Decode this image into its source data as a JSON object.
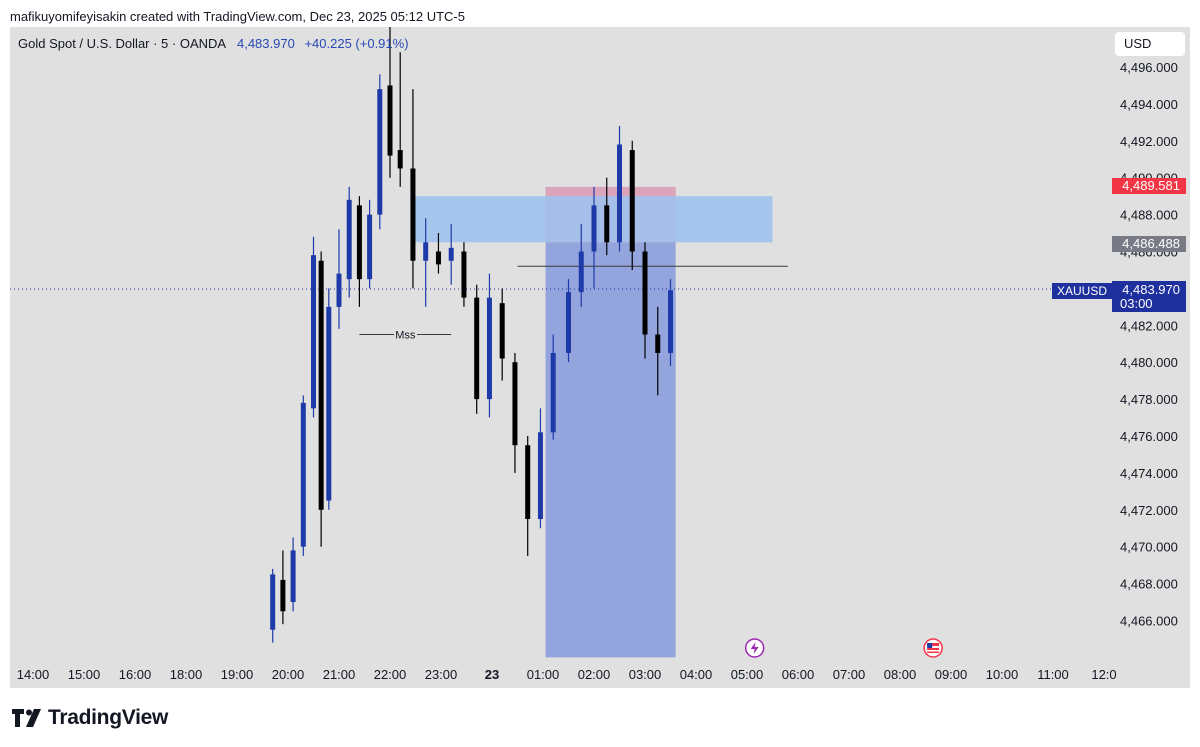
{
  "header": {
    "attribution": "mafikuyomifeyisakin created with TradingView.com, Dec 23, 2025 05:12 UTC-5"
  },
  "symbol": {
    "name": "Gold Spot / U.S. Dollar · 5 · OANDA",
    "price": "4,483.970",
    "change": "+40.225 (+0.91%)",
    "ticker": "XAUUSD",
    "countdown": "03:00"
  },
  "currency_button": {
    "label": "USD"
  },
  "price_tags": {
    "red": "4,489.581",
    "gray": "4,486.488",
    "current": "4,483.970"
  },
  "annotations": {
    "mss": "Mss"
  },
  "footer": {
    "brand": "TradingView"
  },
  "colors": {
    "background": "#e0e0e0",
    "bull": "#1e3aa8",
    "bear": "#000000",
    "demand_zone": "#8fa0dc",
    "supply_zone": "#e6a6b4",
    "fvg": "#a0c2ee",
    "last_price_red": "#f23645",
    "last_price_blue": "#1e2f9e"
  },
  "chart_data": {
    "type": "candlestick",
    "symbol": "XAUUSD",
    "interval": "5",
    "ylim": [
      4464.0,
      4498.5
    ],
    "y_ticks": [
      "4,466.000",
      "4,468.000",
      "4,470.000",
      "4,472.000",
      "4,474.000",
      "4,476.000",
      "4,478.000",
      "4,480.000",
      "4,482.000",
      "4,484.000",
      "4,486.000",
      "4,488.000",
      "4,490.000",
      "4,492.000",
      "4,494.000",
      "4,496.000"
    ],
    "x_ticks": [
      "14:00",
      "15:00",
      "16:00",
      "18:00",
      "19:00",
      "20:00",
      "21:00",
      "22:00",
      "23:00",
      "23",
      "01:00",
      "02:00",
      "03:00",
      "04:00",
      "05:00",
      "06:00",
      "07:00",
      "08:00",
      "09:00",
      "10:00",
      "11:00",
      "12:0"
    ],
    "x_tick_values": [
      -8,
      -7,
      -6,
      -5,
      -4,
      -3,
      -2,
      -1,
      0,
      1,
      2,
      3,
      4,
      5,
      6,
      7,
      8,
      9,
      10,
      11,
      12,
      13
    ],
    "time_unit": "hours relative to 23:00 on Dec 22",
    "candles": [
      {
        "t": -3.3,
        "o": 4465.5,
        "h": 4468.8,
        "l": 4464.8,
        "c": 4468.5
      },
      {
        "t": -3.1,
        "o": 4468.2,
        "h": 4469.8,
        "l": 4465.8,
        "c": 4466.5
      },
      {
        "t": -2.9,
        "o": 4467.0,
        "h": 4470.5,
        "l": 4466.5,
        "c": 4469.8
      },
      {
        "t": -2.7,
        "o": 4470.0,
        "h": 4478.2,
        "l": 4469.5,
        "c": 4477.8
      },
      {
        "t": -2.5,
        "o": 4477.5,
        "h": 4486.8,
        "l": 4477.0,
        "c": 4485.8
      },
      {
        "t": -2.35,
        "o": 4485.5,
        "h": 4486.0,
        "l": 4470.0,
        "c": 4472.0
      },
      {
        "t": -2.2,
        "o": 4472.5,
        "h": 4484.0,
        "l": 4472.0,
        "c": 4483.0
      },
      {
        "t": -2.0,
        "o": 4483.0,
        "h": 4487.2,
        "l": 4481.8,
        "c": 4484.8
      },
      {
        "t": -1.8,
        "o": 4484.5,
        "h": 4489.5,
        "l": 4483.5,
        "c": 4488.8
      },
      {
        "t": -1.6,
        "o": 4488.5,
        "h": 4489.0,
        "l": 4483.0,
        "c": 4484.5
      },
      {
        "t": -1.4,
        "o": 4484.5,
        "h": 4488.8,
        "l": 4484.0,
        "c": 4488.0
      },
      {
        "t": -1.2,
        "o": 4488.0,
        "h": 4495.6,
        "l": 4487.2,
        "c": 4494.8
      },
      {
        "t": -1.0,
        "o": 4495.0,
        "h": 4498.2,
        "l": 4490.0,
        "c": 4491.2
      },
      {
        "t": -0.8,
        "o": 4491.5,
        "h": 4496.8,
        "l": 4489.5,
        "c": 4490.5
      },
      {
        "t": -0.55,
        "o": 4490.5,
        "h": 4494.8,
        "l": 4484.0,
        "c": 4485.5
      },
      {
        "t": -0.3,
        "o": 4485.5,
        "h": 4487.8,
        "l": 4483.0,
        "c": 4486.5
      },
      {
        "t": -0.05,
        "o": 4486.0,
        "h": 4487.0,
        "l": 4484.8,
        "c": 4485.3
      },
      {
        "t": 0.2,
        "o": 4485.5,
        "h": 4487.5,
        "l": 4484.2,
        "c": 4486.2
      },
      {
        "t": 0.45,
        "o": 4486.0,
        "h": 4486.5,
        "l": 4483.0,
        "c": 4483.5
      },
      {
        "t": 0.7,
        "o": 4483.5,
        "h": 4484.2,
        "l": 4477.2,
        "c": 4478.0
      },
      {
        "t": 0.95,
        "o": 4478.0,
        "h": 4484.8,
        "l": 4477.0,
        "c": 4483.5
      },
      {
        "t": 1.2,
        "o": 4483.2,
        "h": 4484.0,
        "l": 4479.0,
        "c": 4480.2
      },
      {
        "t": 1.45,
        "o": 4480.0,
        "h": 4480.5,
        "l": 4474.0,
        "c": 4475.5
      },
      {
        "t": 1.7,
        "o": 4475.5,
        "h": 4476.0,
        "l": 4469.5,
        "c": 4471.5
      },
      {
        "t": 1.95,
        "o": 4471.5,
        "h": 4477.5,
        "l": 4471.0,
        "c": 4476.2
      },
      {
        "t": 2.2,
        "o": 4476.2,
        "h": 4481.5,
        "l": 4475.8,
        "c": 4480.5
      },
      {
        "t": 2.5,
        "o": 4480.5,
        "h": 4484.5,
        "l": 4480.0,
        "c": 4483.8
      },
      {
        "t": 2.75,
        "o": 4483.8,
        "h": 4487.5,
        "l": 4483.0,
        "c": 4486.0
      },
      {
        "t": 3.0,
        "o": 4486.0,
        "h": 4489.5,
        "l": 4484.0,
        "c": 4488.5
      },
      {
        "t": 3.25,
        "o": 4488.5,
        "h": 4490.0,
        "l": 4485.8,
        "c": 4486.5
      },
      {
        "t": 3.5,
        "o": 4486.5,
        "h": 4492.8,
        "l": 4486.0,
        "c": 4491.8
      },
      {
        "t": 3.75,
        "o": 4491.5,
        "h": 4492.0,
        "l": 4485.0,
        "c": 4486.0
      },
      {
        "t": 4.0,
        "o": 4486.0,
        "h": 4486.5,
        "l": 4480.2,
        "c": 4481.5
      },
      {
        "t": 4.25,
        "o": 4481.5,
        "h": 4483.0,
        "l": 4478.2,
        "c": 4480.5
      },
      {
        "t": 4.5,
        "o": 4480.5,
        "h": 4484.5,
        "l": 4479.8,
        "c": 4483.9
      }
    ],
    "zones": [
      {
        "kind": "demand",
        "x0": 2.05,
        "x1": 4.6,
        "y0": 4464.0,
        "y1": 4489.5
      },
      {
        "kind": "supply",
        "x0": 2.05,
        "x1": 4.6,
        "y0": 4486.5,
        "y1": 4489.5
      },
      {
        "kind": "fvg",
        "x0": -0.6,
        "x1": 6.5,
        "y0": 4486.5,
        "y1": 4489.0
      }
    ],
    "lines": [
      {
        "kind": "mss",
        "x0": -1.6,
        "x1": 0.2,
        "y": 4481.5,
        "label": "Mss"
      },
      {
        "kind": "level",
        "x0": 1.5,
        "x1": 6.8,
        "y": 4485.2
      }
    ],
    "current_price": 4483.97,
    "markers": [
      {
        "kind": "lightning",
        "t": 6.15
      },
      {
        "kind": "us-flag",
        "t": 9.65
      }
    ]
  }
}
